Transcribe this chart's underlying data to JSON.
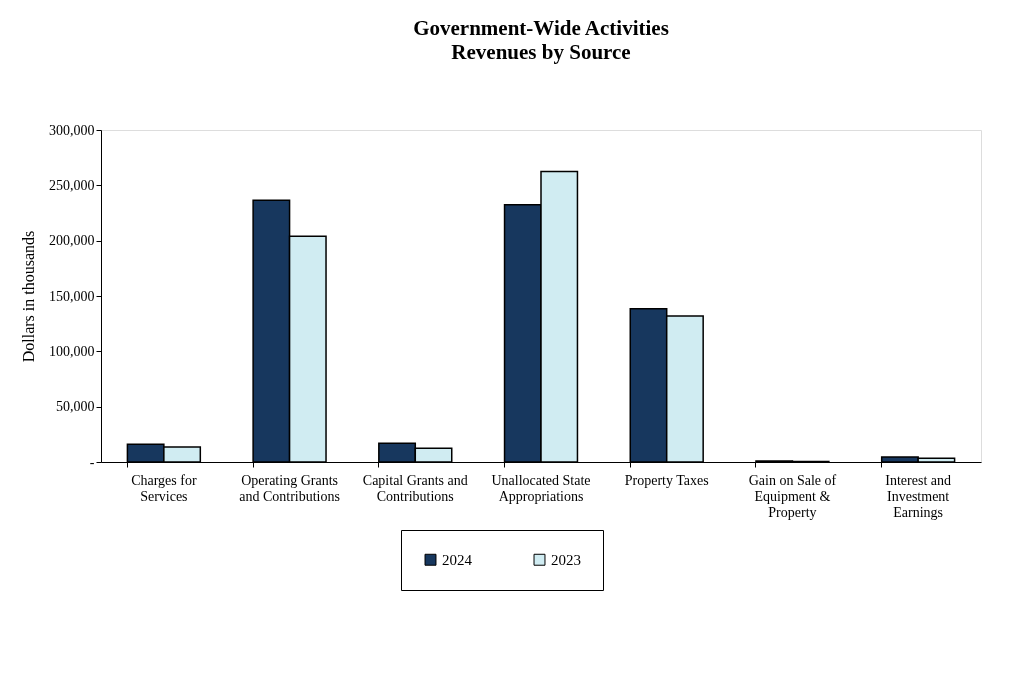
{
  "chart_data": {
    "type": "bar",
    "title": "Government-Wide Activities",
    "subtitle": "Revenues by Source",
    "ylabel": "Dollars in thousands",
    "categories": [
      "Charges for Services",
      "Operating Grants and Contributions",
      "Capital Grants and Contributions",
      "Unallocated State Appropriations",
      "Property Taxes",
      "Gain on Sale of Equipment & Property",
      "Interest and Investment Earnings"
    ],
    "series": [
      {
        "name": "2024",
        "color": "#17375e",
        "values": [
          16000,
          236500,
          17000,
          232500,
          138500,
          1000,
          4500
        ]
      },
      {
        "name": "2023",
        "color": "#d0ecf2",
        "values": [
          13500,
          204000,
          12500,
          262500,
          132000,
          500,
          3500
        ]
      }
    ],
    "ylim": [
      0,
      300000
    ],
    "yticks": [
      {
        "value": 0,
        "label": "-"
      },
      {
        "value": 50000,
        "label": "50,000"
      },
      {
        "value": 100000,
        "label": "100,000"
      },
      {
        "value": 150000,
        "label": "150,000"
      },
      {
        "value": 200000,
        "label": "200,000"
      },
      {
        "value": 250000,
        "label": "250,000"
      },
      {
        "value": 300000,
        "label": "300,000"
      }
    ],
    "grid": false,
    "legend": "bottom"
  }
}
